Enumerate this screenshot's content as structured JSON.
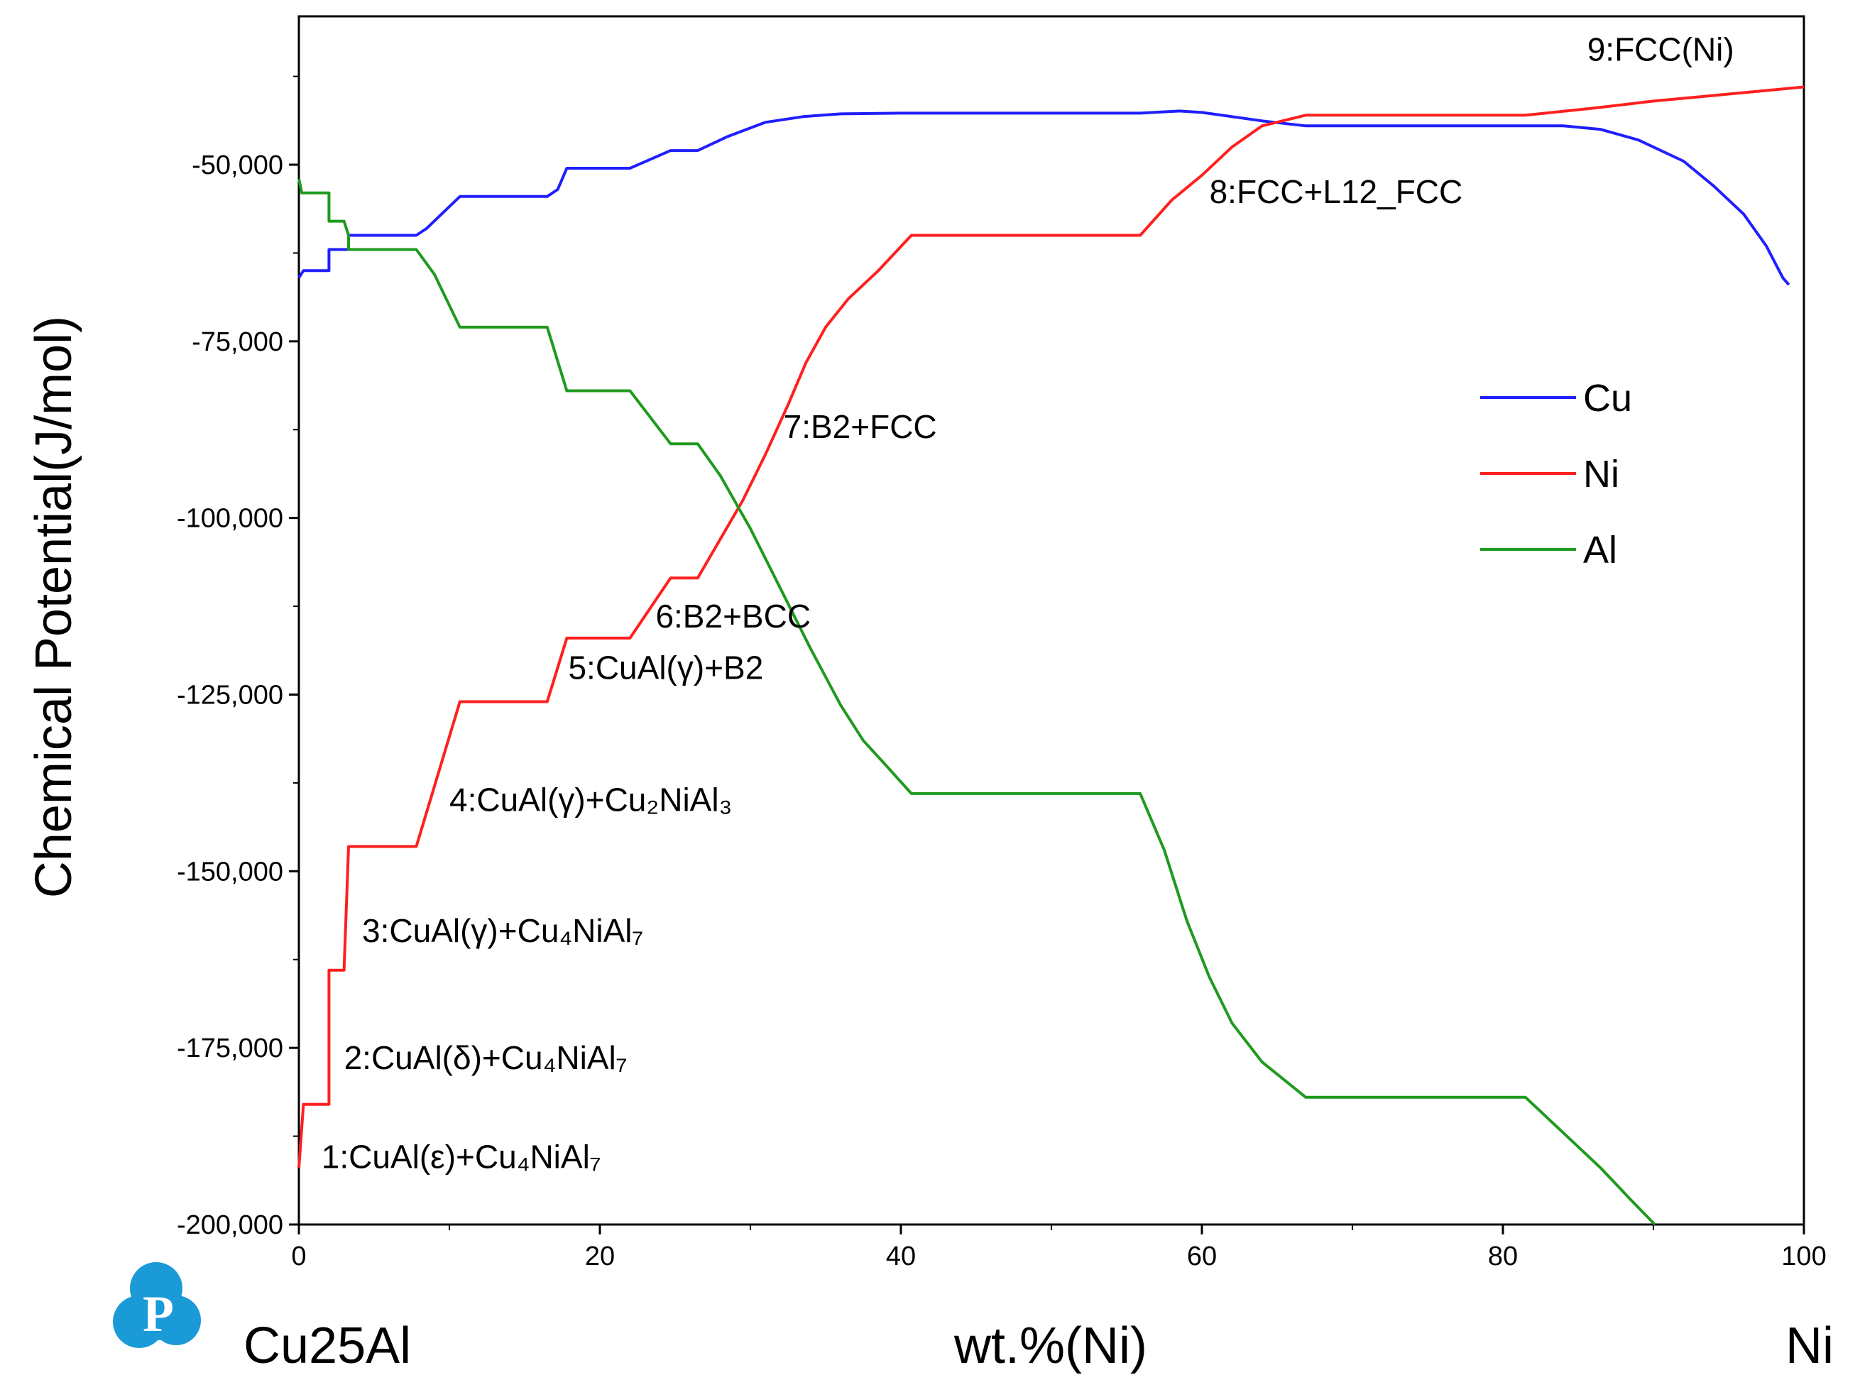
{
  "chart_data": {
    "type": "line",
    "title": "",
    "xlabel": "wt.%(Ni)",
    "ylabel": "Chemical Potential(J/mol)",
    "xlim": [
      0,
      100
    ],
    "ylim": [
      -200000,
      -29000
    ],
    "x_ticks": [
      0,
      20,
      40,
      60,
      80,
      100
    ],
    "x_tick_labels": [
      "0",
      "20",
      "40",
      "60",
      "80",
      "100"
    ],
    "y_ticks": [
      -200000,
      -175000,
      -150000,
      -125000,
      -100000,
      -75000,
      -50000
    ],
    "y_tick_labels": [
      "-200,000",
      "-175,000",
      "-150,000",
      "-125,000",
      "-100,000",
      "-75,000",
      "-50,000"
    ],
    "grid": false,
    "legend": {
      "position": "right",
      "entries": [
        "Cu",
        "Ni",
        "Al"
      ]
    },
    "series": [
      {
        "name": "Cu",
        "color": "#1f1fff",
        "points": [
          [
            0,
            -66000
          ],
          [
            0.3,
            -65000
          ],
          [
            2,
            -65000
          ],
          [
            2,
            -62000
          ],
          [
            3.3,
            -62000
          ],
          [
            3.3,
            -60000
          ],
          [
            7.8,
            -60000
          ],
          [
            8.5,
            -59000
          ],
          [
            10.7,
            -54500
          ],
          [
            16.5,
            -54500
          ],
          [
            17.2,
            -53500
          ],
          [
            17.8,
            -50500
          ],
          [
            22,
            -50500
          ],
          [
            24.7,
            -48000
          ],
          [
            26.5,
            -48000
          ],
          [
            28.5,
            -46000
          ],
          [
            31,
            -44000
          ],
          [
            33.5,
            -43200
          ],
          [
            36,
            -42800
          ],
          [
            40,
            -42700
          ],
          [
            55.9,
            -42700
          ],
          [
            58.5,
            -42400
          ],
          [
            60,
            -42600
          ],
          [
            62,
            -43200
          ],
          [
            64,
            -43800
          ],
          [
            66.9,
            -44500
          ],
          [
            84,
            -44500
          ],
          [
            86.5,
            -45000
          ],
          [
            89,
            -46500
          ],
          [
            92,
            -49500
          ],
          [
            94,
            -53000
          ],
          [
            96,
            -57000
          ],
          [
            97.5,
            -61500
          ],
          [
            98.6,
            -66000
          ],
          [
            99,
            -67000
          ]
        ]
      },
      {
        "name": "Ni",
        "color": "#ff1f1f",
        "points": [
          [
            0,
            -192000
          ],
          [
            0.3,
            -183000
          ],
          [
            2,
            -183000
          ],
          [
            2,
            -164000
          ],
          [
            3,
            -164000
          ],
          [
            3.3,
            -146500
          ],
          [
            7.8,
            -146500
          ],
          [
            10.7,
            -126000
          ],
          [
            16.5,
            -126000
          ],
          [
            17.8,
            -117000
          ],
          [
            22,
            -117000
          ],
          [
            24.7,
            -108500
          ],
          [
            26.5,
            -108500
          ],
          [
            28,
            -103000
          ],
          [
            29.5,
            -97500
          ],
          [
            31,
            -91000
          ],
          [
            32.5,
            -84000
          ],
          [
            33.7,
            -78000
          ],
          [
            35,
            -73000
          ],
          [
            36.5,
            -69000
          ],
          [
            38.5,
            -65000
          ],
          [
            40.7,
            -60000
          ],
          [
            55.9,
            -60000
          ],
          [
            58,
            -55000
          ],
          [
            60,
            -51500
          ],
          [
            62,
            -47500
          ],
          [
            64,
            -44500
          ],
          [
            66.9,
            -43000
          ],
          [
            81.5,
            -43000
          ],
          [
            86,
            -42000
          ],
          [
            90,
            -41000
          ],
          [
            95,
            -40000
          ],
          [
            100,
            -39000
          ]
        ]
      },
      {
        "name": "Al",
        "color": "#1f9a1f",
        "points": [
          [
            0,
            -52000
          ],
          [
            0.2,
            -54000
          ],
          [
            2,
            -54000
          ],
          [
            2,
            -58000
          ],
          [
            3,
            -58000
          ],
          [
            3.3,
            -60000
          ],
          [
            3.3,
            -62000
          ],
          [
            7.8,
            -62000
          ],
          [
            9,
            -65500
          ],
          [
            10.7,
            -73000
          ],
          [
            16.5,
            -73000
          ],
          [
            17.8,
            -82000
          ],
          [
            22,
            -82000
          ],
          [
            24.7,
            -89500
          ],
          [
            26.5,
            -89500
          ],
          [
            28,
            -94000
          ],
          [
            30,
            -101500
          ],
          [
            32,
            -110000
          ],
          [
            34,
            -118500
          ],
          [
            36,
            -126500
          ],
          [
            37.5,
            -131500
          ],
          [
            39,
            -135000
          ],
          [
            40.7,
            -139000
          ],
          [
            55.9,
            -139000
          ],
          [
            57.5,
            -147000
          ],
          [
            59,
            -157000
          ],
          [
            60.5,
            -165000
          ],
          [
            62,
            -171500
          ],
          [
            64,
            -177000
          ],
          [
            66.9,
            -182000
          ],
          [
            81.5,
            -182000
          ],
          [
            84,
            -187000
          ],
          [
            86.5,
            -192000
          ],
          [
            88.5,
            -196500
          ],
          [
            90.1,
            -200000
          ]
        ]
      }
    ],
    "phase_labels": [
      {
        "text": "1:CuAl(ε)+Cu₄NiAl₇",
        "x": 1.5,
        "y": -192000
      },
      {
        "text": "2:CuAl(δ)+Cu₄NiAl₇",
        "x": 3,
        "y": -178000
      },
      {
        "text": "3:CuAl(γ)+Cu₄NiAl₇",
        "x": 4.2,
        "y": -160000
      },
      {
        "text": "4:CuAl(γ)+Cu₂NiAl₃",
        "x": 10,
        "y": -141500
      },
      {
        "text": "5:CuAl(γ)+B2",
        "x": 17.9,
        "y": -122800
      },
      {
        "text": "6:B2+BCC",
        "x": 23.7,
        "y": -115500
      },
      {
        "text": "7:B2+FCC",
        "x": 32.2,
        "y": -88700
      },
      {
        "text": "8:FCC+L12_FCC",
        "x": 60.5,
        "y": -55400
      },
      {
        "text": "9:FCC(Ni)",
        "x": 85.6,
        "y": -35300
      }
    ]
  },
  "footer": {
    "system_label": "Cu25Al",
    "end_element": "Ni",
    "logo_letter": "P",
    "logo_color": "#1a9ad6"
  }
}
